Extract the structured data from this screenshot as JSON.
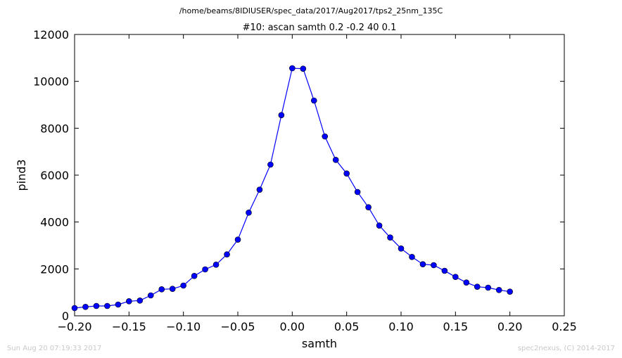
{
  "chart_data": {
    "type": "line",
    "suptitle": "/home/beams/8IDIUSER/spec_data/2017/Aug2017/tps2_25nm_135C",
    "title": "#10: ascan  samth 0.2 -0.2  40 0.1",
    "xlabel": "samth",
    "ylabel": "pind3",
    "xlim": [
      -0.2,
      0.25
    ],
    "ylim": [
      0,
      12000
    ],
    "xticks": [
      -0.2,
      -0.15,
      -0.1,
      -0.05,
      0.0,
      0.05,
      0.1,
      0.15,
      0.2,
      0.25
    ],
    "xtick_labels": [
      "−0.20",
      "−0.15",
      "−0.10",
      "−0.05",
      "0.00",
      "0.05",
      "0.10",
      "0.15",
      "0.20",
      "0.25"
    ],
    "yticks": [
      0,
      2000,
      4000,
      6000,
      8000,
      10000,
      12000
    ],
    "ytick_labels": [
      "0",
      "2000",
      "4000",
      "6000",
      "8000",
      "10000",
      "12000"
    ],
    "grid": false,
    "marker": "circle",
    "line_color": "#0000ff",
    "series": [
      {
        "x": [
          -0.2,
          -0.19,
          -0.18,
          -0.17,
          -0.16,
          -0.15,
          -0.14,
          -0.13,
          -0.12,
          -0.11,
          -0.1,
          -0.09,
          -0.08,
          -0.07,
          -0.06,
          -0.05,
          -0.04,
          -0.03,
          -0.02,
          -0.01,
          0.0,
          0.01,
          0.02,
          0.03,
          0.04,
          0.05,
          0.06,
          0.07,
          0.08,
          0.09,
          0.1,
          0.11,
          0.12,
          0.13,
          0.14,
          0.15,
          0.16,
          0.17,
          0.18,
          0.19,
          0.2
        ],
        "y": [
          330,
          380,
          420,
          420,
          480,
          620,
          650,
          870,
          1130,
          1150,
          1290,
          1700,
          1980,
          2180,
          2620,
          3250,
          4400,
          5380,
          6450,
          8560,
          10560,
          10540,
          9180,
          7650,
          6650,
          6070,
          5280,
          4630,
          3850,
          3340,
          2870,
          2510,
          2200,
          2160,
          1920,
          1660,
          1420,
          1240,
          1200,
          1100,
          1030
        ]
      }
    ]
  },
  "footer": {
    "timestamp": "Sun Aug 20 07:19:33 2017",
    "credit": "spec2nexus, (C) 2014-2017"
  }
}
